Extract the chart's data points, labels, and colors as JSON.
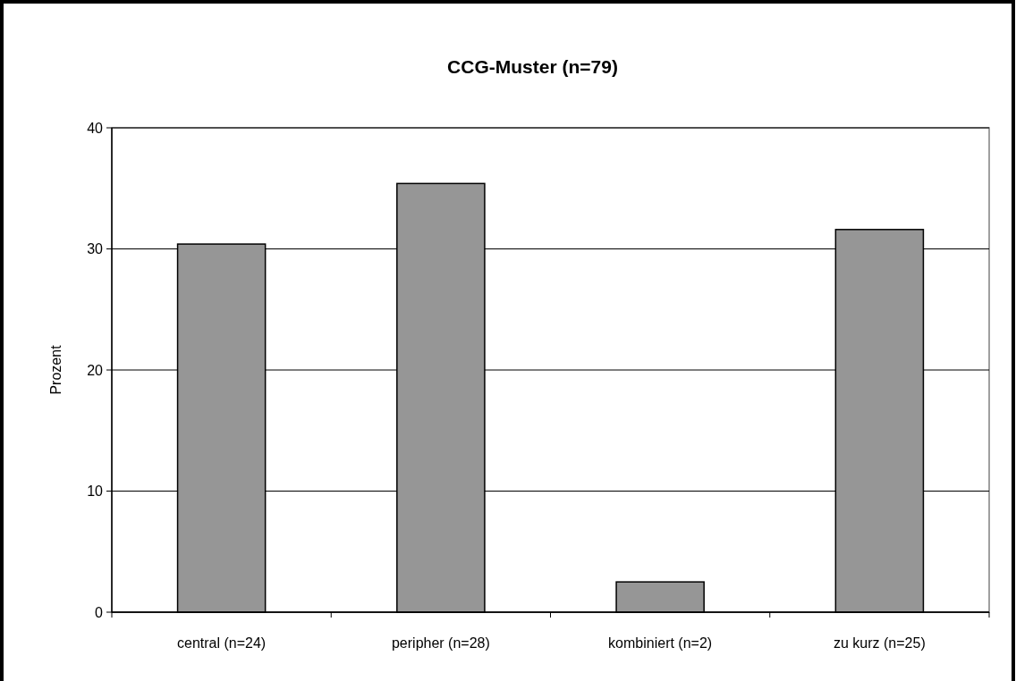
{
  "chart_data": {
    "type": "bar",
    "title": "CCG-Muster (n=79)",
    "ylabel": "Prozent",
    "categories": [
      "central (n=24)",
      "peripher (n=28)",
      "kombiniert (n=2)",
      "zu kurz (n=25)"
    ],
    "values": [
      30.4,
      35.4,
      2.5,
      31.6
    ],
    "color": "#969696",
    "ylim": [
      0,
      40
    ],
    "yticks": [
      0,
      10,
      20,
      30,
      40
    ],
    "grid": "y"
  }
}
